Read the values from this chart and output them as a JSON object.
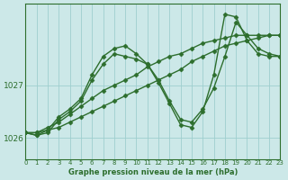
{
  "xlabel_bottom": "Graphe pression niveau de la mer (hPa)",
  "xlim": [
    0,
    23
  ],
  "ylim": [
    1025.6,
    1028.55
  ],
  "yticks": [
    1026,
    1027
  ],
  "xticks": [
    0,
    1,
    2,
    3,
    4,
    5,
    6,
    7,
    8,
    9,
    10,
    11,
    12,
    13,
    14,
    15,
    16,
    17,
    18,
    19,
    20,
    21,
    22,
    23
  ],
  "bg_color": "#cce8e8",
  "grid_color": "#9ecece",
  "line_color": "#2d6e2d",
  "marker": "D",
  "markersize": 2.5,
  "linewidth": 1.0,
  "series": [
    [
      1026.1,
      1026.1,
      1026.15,
      1026.2,
      1026.3,
      1026.4,
      1026.5,
      1026.6,
      1026.7,
      1026.8,
      1026.9,
      1027.0,
      1027.1,
      1027.2,
      1027.3,
      1027.45,
      1027.55,
      1027.65,
      1027.75,
      1027.8,
      1027.85,
      1027.9,
      1027.95,
      1027.95
    ],
    [
      1026.1,
      1026.1,
      1026.2,
      1026.3,
      1026.45,
      1026.6,
      1026.75,
      1026.9,
      1027.0,
      1027.1,
      1027.2,
      1027.35,
      1027.45,
      1027.55,
      1027.6,
      1027.7,
      1027.8,
      1027.85,
      1027.9,
      1027.95,
      1027.95,
      1027.95,
      1027.95,
      1027.95
    ],
    [
      1026.1,
      1026.05,
      1026.1,
      1026.35,
      1026.5,
      1026.7,
      1027.1,
      1027.4,
      1027.6,
      1027.55,
      1027.5,
      1027.4,
      1027.1,
      1026.7,
      1026.35,
      1026.3,
      1026.55,
      1026.95,
      1027.55,
      1028.2,
      1027.95,
      1027.7,
      1027.6,
      1027.55
    ],
    [
      1026.1,
      1026.05,
      1026.15,
      1026.4,
      1026.55,
      1026.75,
      1027.2,
      1027.55,
      1027.7,
      1027.75,
      1027.6,
      1027.4,
      1027.05,
      1026.65,
      1026.25,
      1026.2,
      1026.5,
      1027.2,
      1028.35,
      1028.3,
      1027.85,
      1027.6,
      1027.55,
      1027.55
    ]
  ]
}
